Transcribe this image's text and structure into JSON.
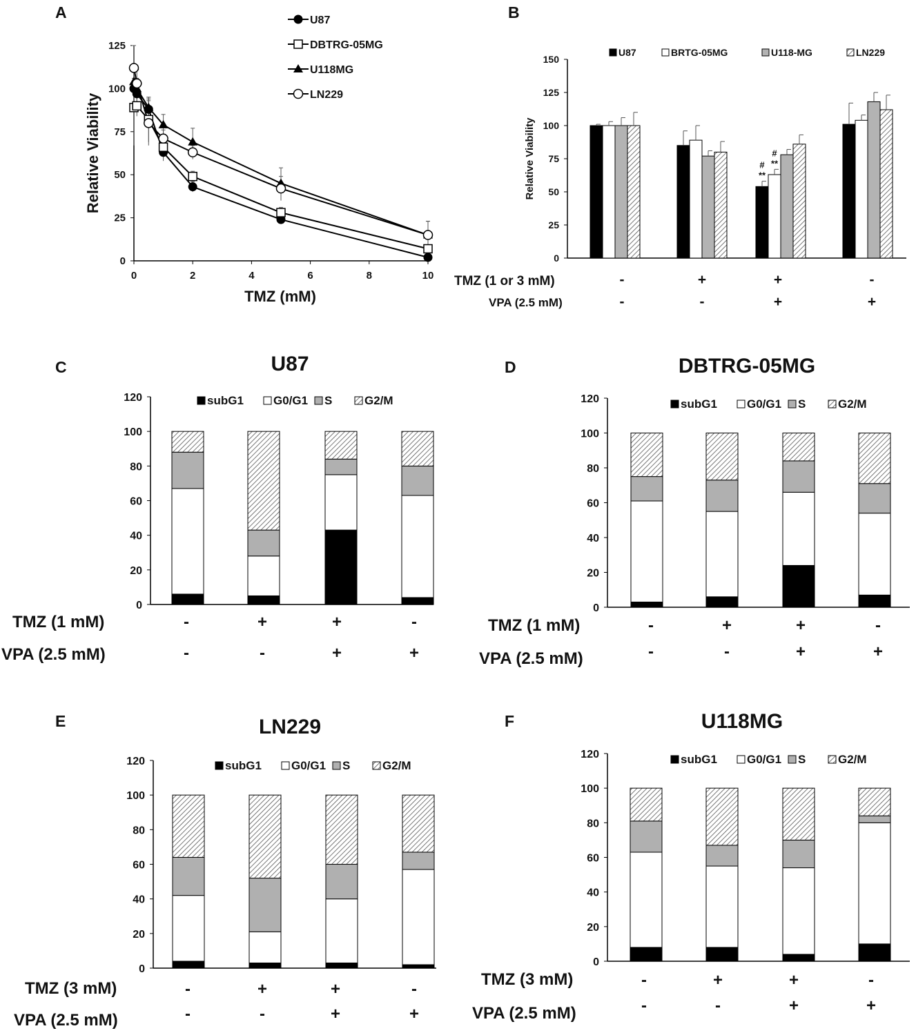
{
  "panels": [
    {
      "id": "A",
      "label": "A"
    },
    {
      "id": "B",
      "label": "B"
    },
    {
      "id": "C",
      "label": "C"
    },
    {
      "id": "D",
      "label": "D"
    },
    {
      "id": "E",
      "label": "E"
    },
    {
      "id": "F",
      "label": "F"
    }
  ],
  "colors": {
    "U87": "#000000",
    "BRTG": "#ffffff",
    "U118": "#b3b3b3",
    "LN229": "#e6e6e6",
    "subG1": "#000000",
    "G0G1": "#ffffff",
    "S": "#b0b0b0",
    "G2M": "#eeeeee"
  },
  "chart_data": [
    {
      "id": "A",
      "type": "line",
      "xlabel": "TMZ (mM)",
      "ylabel": "Relative Viability",
      "xlim": [
        0,
        10
      ],
      "ylim": [
        0,
        125
      ],
      "xticks": [
        0,
        2,
        4,
        6,
        8,
        10
      ],
      "yticks": [
        0,
        25,
        50,
        75,
        100,
        125
      ],
      "series": [
        {
          "name": "U87",
          "marker": "filled-circle",
          "x": [
            0,
            0.1,
            0.5,
            1,
            2,
            5,
            10
          ],
          "y": [
            100,
            97,
            88,
            63,
            43,
            24,
            2
          ],
          "err": [
            6,
            6,
            6,
            5,
            3,
            2,
            1
          ]
        },
        {
          "name": "DBTRG-05MG",
          "marker": "open-square",
          "x": [
            0,
            0.1,
            0.5,
            1,
            2,
            5,
            10
          ],
          "y": [
            89,
            90,
            82,
            66,
            49,
            28,
            7
          ],
          "err": [
            22,
            6,
            13,
            6,
            3,
            3,
            2
          ]
        },
        {
          "name": "U118MG",
          "marker": "filled-triangle",
          "x": [
            0,
            0.1,
            0.5,
            1,
            2,
            5,
            10
          ],
          "y": [
            104,
            100,
            89,
            79,
            69,
            45,
            15
          ],
          "err": [
            8,
            6,
            6,
            6,
            8,
            9,
            8
          ]
        },
        {
          "name": "LN229",
          "marker": "open-circle",
          "x": [
            0,
            0.1,
            0.5,
            1,
            2,
            5,
            10
          ],
          "y": [
            112,
            103,
            80,
            71,
            63,
            42,
            15
          ],
          "err": [
            13,
            8,
            13,
            5,
            4,
            7,
            8
          ]
        }
      ]
    },
    {
      "id": "B",
      "type": "bar",
      "ylabel": "Relative Viability",
      "ylim": [
        0,
        150
      ],
      "yticks": [
        0,
        25,
        50,
        75,
        100,
        125,
        150
      ],
      "groups": 4,
      "series": [
        {
          "name": "U87",
          "values": [
            100,
            85,
            54,
            101
          ],
          "err": [
            1,
            11,
            4,
            16
          ]
        },
        {
          "name": "BRTG-05MG",
          "values": [
            100,
            89,
            63,
            104
          ],
          "err": [
            3,
            11,
            4,
            4
          ]
        },
        {
          "name": "U118-MG",
          "values": [
            100,
            77,
            78,
            118
          ],
          "err": [
            6,
            4,
            4,
            7
          ]
        },
        {
          "name": "LN229",
          "values": [
            100,
            80,
            86,
            112
          ],
          "err": [
            10,
            8,
            7,
            11
          ]
        }
      ],
      "annotations": [
        {
          "group": 3,
          "series": "U87",
          "text_top": "#",
          "text_bottom": "**"
        },
        {
          "group": 3,
          "series": "BRTG-05MG",
          "text_top": "#",
          "text_bottom": "**"
        }
      ],
      "conditions": [
        {
          "label": "TMZ  (1 or 3 mM)",
          "signs": [
            "-",
            "+",
            "+",
            "-"
          ]
        },
        {
          "label": "VPA (2.5 mM)",
          "signs": [
            "-",
            "-",
            "+",
            "+"
          ]
        }
      ]
    },
    {
      "id": "C",
      "type": "bar",
      "stacked": true,
      "title": "U87",
      "ylim": [
        0,
        120
      ],
      "yticks": [
        0,
        20,
        40,
        60,
        80,
        100,
        120
      ],
      "legend": [
        "subG1",
        "G0/G1",
        "S",
        "G2/M"
      ],
      "bars": [
        {
          "subG1": 6,
          "G0G1": 61,
          "S": 21,
          "G2M": 12
        },
        {
          "subG1": 5,
          "G0G1": 23,
          "S": 15,
          "G2M": 57
        },
        {
          "subG1": 43,
          "G0G1": 32,
          "S": 9,
          "G2M": 16
        },
        {
          "subG1": 4,
          "G0G1": 59,
          "S": 17,
          "G2M": 20
        }
      ],
      "conditions": [
        {
          "label": "TMZ (1 mM)",
          "signs": [
            "-",
            "+",
            "+",
            "-"
          ]
        },
        {
          "label": "VPA (2.5 mM)",
          "signs": [
            "-",
            "-",
            "+",
            "+"
          ]
        }
      ]
    },
    {
      "id": "D",
      "type": "bar",
      "stacked": true,
      "title": "DBTRG-05MG",
      "ylim": [
        0,
        120
      ],
      "yticks": [
        0,
        20,
        40,
        60,
        80,
        100,
        120
      ],
      "legend": [
        "subG1",
        "G0/G1",
        "S",
        "G2/M"
      ],
      "bars": [
        {
          "subG1": 3,
          "G0G1": 58,
          "S": 14,
          "G2M": 25
        },
        {
          "subG1": 6,
          "G0G1": 49,
          "S": 18,
          "G2M": 27
        },
        {
          "subG1": 24,
          "G0G1": 42,
          "S": 18,
          "G2M": 16
        },
        {
          "subG1": 7,
          "G0G1": 47,
          "S": 17,
          "G2M": 29
        }
      ],
      "conditions": [
        {
          "label": "TMZ (1 mM)",
          "signs": [
            "-",
            "+",
            "+",
            "-"
          ]
        },
        {
          "label": "VPA (2.5 mM)",
          "signs": [
            "-",
            "-",
            "+",
            "+"
          ]
        }
      ]
    },
    {
      "id": "E",
      "type": "bar",
      "stacked": true,
      "title": "LN229",
      "ylim": [
        0,
        120
      ],
      "yticks": [
        0,
        20,
        40,
        60,
        80,
        100,
        120
      ],
      "legend": [
        "subG1",
        "G0/G1",
        "S",
        "G2/M"
      ],
      "bars": [
        {
          "subG1": 4,
          "G0G1": 38,
          "S": 22,
          "G2M": 36
        },
        {
          "subG1": 3,
          "G0G1": 18,
          "S": 31,
          "G2M": 48
        },
        {
          "subG1": 3,
          "G0G1": 37,
          "S": 20,
          "G2M": 40
        },
        {
          "subG1": 2,
          "G0G1": 55,
          "S": 10,
          "G2M": 33
        }
      ],
      "conditions": [
        {
          "label": "TMZ (3 mM)",
          "signs": [
            "-",
            "+",
            "+",
            "-"
          ]
        },
        {
          "label": "VPA (2.5 mM)",
          "signs": [
            "-",
            "-",
            "+",
            "+"
          ]
        }
      ]
    },
    {
      "id": "F",
      "type": "bar",
      "stacked": true,
      "title": "U118MG",
      "ylim": [
        0,
        120
      ],
      "yticks": [
        0,
        20,
        40,
        60,
        80,
        100,
        120
      ],
      "legend": [
        "subG1",
        "G0/G1",
        "S",
        "G2/M"
      ],
      "bars": [
        {
          "subG1": 8,
          "G0G1": 55,
          "S": 18,
          "G2M": 19
        },
        {
          "subG1": 8,
          "G0G1": 47,
          "S": 12,
          "G2M": 33
        },
        {
          "subG1": 4,
          "G0G1": 50,
          "S": 16,
          "G2M": 30
        },
        {
          "subG1": 10,
          "G0G1": 70,
          "S": 4,
          "G2M": 16
        }
      ],
      "conditions": [
        {
          "label": "TMZ (3 mM)",
          "signs": [
            "-",
            "+",
            "+",
            "-"
          ]
        },
        {
          "label": "VPA (2.5 mM)",
          "signs": [
            "-",
            "-",
            "+",
            "+"
          ]
        }
      ]
    }
  ]
}
